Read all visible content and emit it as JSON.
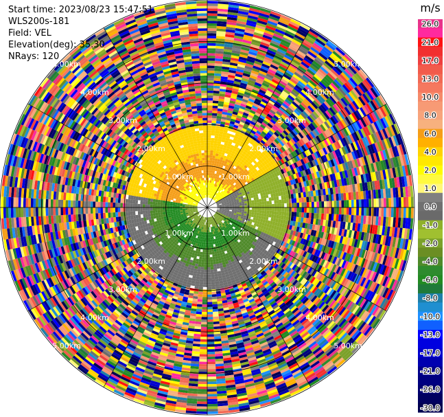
{
  "header": {
    "start_time": "Start time: 2023/08/23 15:47:51",
    "instrument": "WLS200s-181",
    "field": "Field: VEL",
    "elevation": "Elevation(deg): 35.30",
    "nrays": "NRays: 120"
  },
  "chart_data": {
    "type": "heatmap",
    "subtype": "ppi-polar",
    "field": "VEL",
    "units": "m/s",
    "nrays": 120,
    "range_rings_km": [
      1.0,
      2.0,
      3.0,
      4.0,
      5.0
    ],
    "range_ring_labels": [
      "1.00km",
      "2.00km",
      "3.00km",
      "4.00km",
      "5.00km"
    ],
    "max_range_km": 5.0,
    "spokes": 12,
    "colorbar": {
      "unit_label": "m/s",
      "levels": [
        {
          "label": "26.0",
          "color": "#e8338a"
        },
        {
          "label": "",
          "color": "#ff2a9e"
        },
        {
          "label": "21.0",
          "color": "#ff1212"
        },
        {
          "label": "",
          "color": "#f22f2f"
        },
        {
          "label": "17.0",
          "color": "#ef4040"
        },
        {
          "label": "",
          "color": "#f25b4b"
        },
        {
          "label": "13.0",
          "color": "#f26a55"
        },
        {
          "label": "",
          "color": "#f5785f"
        },
        {
          "label": "10.0",
          "color": "#f58a6a"
        },
        {
          "label": "",
          "color": "#f79a75"
        },
        {
          "label": "8.0",
          "color": "#f7a47c"
        },
        {
          "label": "",
          "color": "#f7b17e"
        },
        {
          "label": "6.0",
          "color": "#f59e18"
        },
        {
          "label": "",
          "color": "#ffb000"
        },
        {
          "label": "4.0",
          "color": "#ffd300"
        },
        {
          "label": "",
          "color": "#ffe800"
        },
        {
          "label": "2.0",
          "color": "#fffc00"
        },
        {
          "label": "",
          "color": "#fffa40"
        },
        {
          "label": "1.0",
          "color": "#fff77a"
        },
        {
          "label": "",
          "color": "#808080"
        },
        {
          "label": "0.0",
          "color": "#707070"
        },
        {
          "label": "",
          "color": "#6a6a6a"
        },
        {
          "label": "-1.0",
          "color": "#8fb02a"
        },
        {
          "label": "",
          "color": "#a0c030"
        },
        {
          "label": "-2.0",
          "color": "#7ba12a"
        },
        {
          "label": "",
          "color": "#6b8e23"
        },
        {
          "label": "-4.0",
          "color": "#4f8a2a"
        },
        {
          "label": "",
          "color": "#2e8b2e"
        },
        {
          "label": "-6.0",
          "color": "#228b22"
        },
        {
          "label": "",
          "color": "#1f7a3a"
        },
        {
          "label": "-8.0",
          "color": "#1d7fa8"
        },
        {
          "label": "",
          "color": "#1f8fd0"
        },
        {
          "label": "-10.0",
          "color": "#1e90ff"
        },
        {
          "label": "",
          "color": "#1060ff"
        },
        {
          "label": "-13.0",
          "color": "#0000ff"
        },
        {
          "label": "",
          "color": "#0000e0"
        },
        {
          "label": "-17.0",
          "color": "#0000cd"
        },
        {
          "label": "",
          "color": "#0000b0"
        },
        {
          "label": "-21.0",
          "color": "#00008b"
        },
        {
          "label": "",
          "color": "#000080"
        },
        {
          "label": "-26.0",
          "color": "#000070"
        },
        {
          "label": "",
          "color": "#000060"
        },
        {
          "label": "-30.0",
          "color": "#000050"
        }
      ]
    },
    "regions": [
      {
        "name": "north",
        "az_from": 280,
        "az_to": 60,
        "r_from_km": 0.2,
        "r_to_km": 1.95,
        "values": [
          2.0,
          6.0,
          4.0
        ]
      },
      {
        "name": "east",
        "az_from": 60,
        "az_to": 115,
        "r_from_km": 0.2,
        "r_to_km": 1.95,
        "values": [
          0.0,
          -1.0
        ]
      },
      {
        "name": "south",
        "az_from": 115,
        "az_to": 280,
        "r_from_km": 0.2,
        "r_to_km": 1.95,
        "values": [
          -2.0,
          -6.0,
          -4.0,
          0.0
        ]
      },
      {
        "name": "outer-noise",
        "az_from": 0,
        "az_to": 360,
        "r_from_km": 1.95,
        "r_to_km": 5.0,
        "values": [
          26.0,
          21.0,
          17.0,
          13.0,
          2.0,
          0.0,
          -13.0,
          -21.0,
          -26.0,
          -30.0
        ]
      }
    ]
  }
}
